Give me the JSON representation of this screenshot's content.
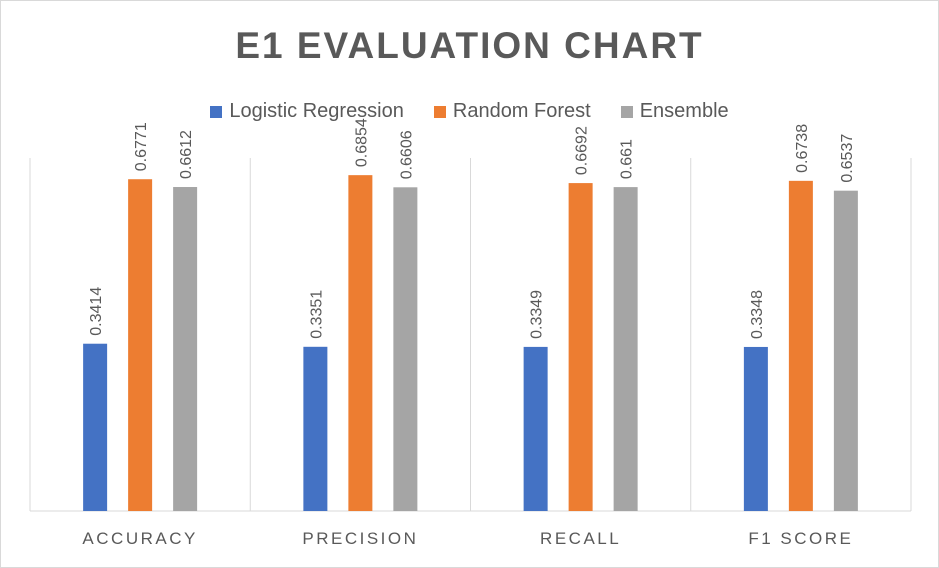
{
  "chart_data": {
    "type": "bar",
    "title": "E1 EVALUATION CHART",
    "categories": [
      "ACCURACY",
      "PRECISION",
      "RECALL",
      "F1 SCORE"
    ],
    "series": [
      {
        "name": "Logistic Regression",
        "color": "#4472C4",
        "values": [
          0.3414,
          0.3351,
          0.3349,
          0.3348
        ],
        "labels": [
          "0.3414",
          "0.3351",
          "0.3349",
          "0.3348"
        ]
      },
      {
        "name": "Random Forest",
        "color": "#ED7D31",
        "values": [
          0.6771,
          0.6854,
          0.6692,
          0.6738
        ],
        "labels": [
          "0.6771",
          "0.6854",
          "0.6692",
          "0.6738"
        ]
      },
      {
        "name": "Ensemble",
        "color": "#A5A5A5",
        "values": [
          0.6612,
          0.6606,
          0.661,
          0.6537
        ],
        "labels": [
          "0.6612",
          "0.6606",
          "0.661",
          "0.6537"
        ]
      }
    ],
    "ylim": [
      0,
      0.7
    ],
    "legend_position": "top",
    "grid": "vertical category separators"
  }
}
